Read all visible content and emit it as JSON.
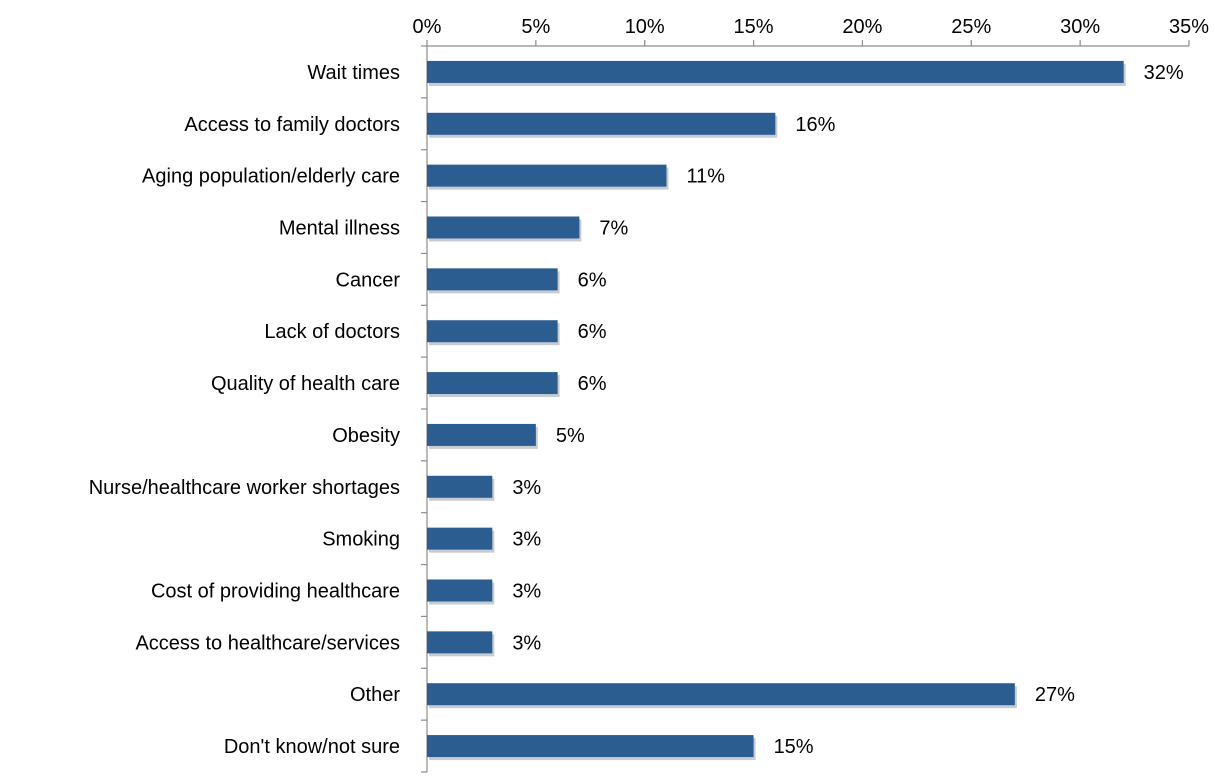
{
  "chart_data": {
    "type": "bar",
    "orientation": "horizontal",
    "categories": [
      "Wait times",
      "Access to family doctors",
      "Aging population/elderly care",
      "Mental illness",
      "Cancer",
      "Lack of doctors",
      "Quality of health care",
      "Obesity",
      "Nurse/healthcare worker shortages",
      "Smoking",
      "Cost of providing healthcare",
      "Access to healthcare/services",
      "Other",
      "Don't know/not sure"
    ],
    "values": [
      32,
      16,
      11,
      7,
      6,
      6,
      6,
      5,
      3,
      3,
      3,
      3,
      27,
      15
    ],
    "data_labels": [
      "32%",
      "16%",
      "11%",
      "7%",
      "6%",
      "6%",
      "6%",
      "5%",
      "3%",
      "3%",
      "3%",
      "3%",
      "27%",
      "15%"
    ],
    "xlim": [
      0,
      35
    ],
    "x_ticks": [
      0,
      5,
      10,
      15,
      20,
      25,
      30,
      35
    ],
    "x_tick_labels": [
      "0%",
      "5%",
      "10%",
      "15%",
      "20%",
      "25%",
      "30%",
      "35%"
    ],
    "x_axis_position": "top",
    "title": "",
    "xlabel": "",
    "ylabel": "",
    "grid": false,
    "legend": "none",
    "bar_color": "#2b5d91"
  }
}
